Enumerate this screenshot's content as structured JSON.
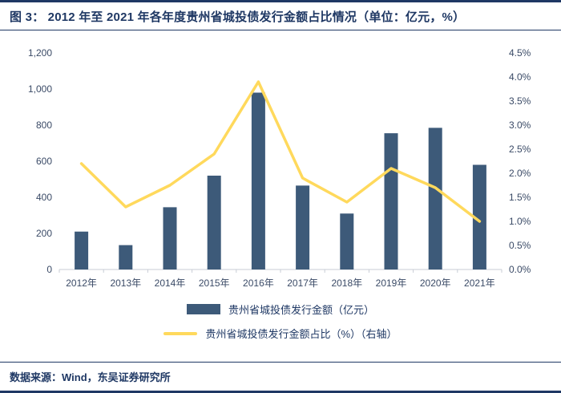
{
  "header": {
    "title": "图 3：  2012 年至 2021 年各年度贵州省城投债发行金额占比情况（单位：亿元，%）"
  },
  "footer": {
    "source": "数据来源：Wind，东吴证券研究所"
  },
  "colors": {
    "bar": "#3d5a79",
    "line": "#ffd95c",
    "accent": "#1f3864",
    "axis_line": "#c8cdd6",
    "axis_text": "#3a4a66"
  },
  "chart_data": {
    "type": "bar",
    "subtype": "bar+line-combo",
    "categories": [
      "2012年",
      "2013年",
      "2014年",
      "2015年",
      "2016年",
      "2017年",
      "2018年",
      "2019年",
      "2020年",
      "2021年"
    ],
    "series": [
      {
        "name": "贵州省城投债发行金额（亿元）",
        "type": "bar",
        "axis": "left",
        "values": [
          210,
          135,
          345,
          520,
          980,
          465,
          310,
          755,
          785,
          580
        ]
      },
      {
        "name": "贵州省城投债发行金额占比（%）（右轴）",
        "type": "line",
        "axis": "right",
        "values": [
          2.2,
          1.3,
          1.75,
          2.4,
          3.9,
          1.9,
          1.4,
          2.1,
          1.7,
          1.0
        ]
      }
    ],
    "left_axis": {
      "min": 0,
      "max": 1200,
      "step": 200,
      "tick_labels": [
        "0",
        "200",
        "400",
        "600",
        "800",
        "1,000",
        "1,200"
      ]
    },
    "right_axis": {
      "min": 0,
      "max": 4.5,
      "step": 0.5,
      "tick_labels": [
        "0.0%",
        "0.5%",
        "1.0%",
        "1.5%",
        "2.0%",
        "2.5%",
        "3.0%",
        "3.5%",
        "4.0%",
        "4.5%"
      ]
    },
    "grid": false,
    "legend_position": "bottom"
  }
}
